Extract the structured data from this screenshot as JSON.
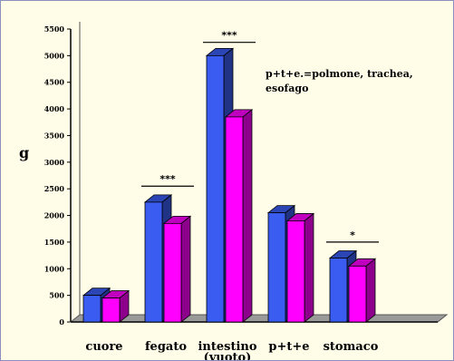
{
  "chart_data": {
    "type": "bar",
    "categories": [
      "cuore",
      "fegato",
      "intestino (vuoto)",
      "p+t+e",
      "stomaco"
    ],
    "category_lines": [
      [
        "cuore"
      ],
      [
        "fegato"
      ],
      [
        "intestino",
        "(vuoto)"
      ],
      [
        "p+t+e"
      ],
      [
        "stomaco"
      ]
    ],
    "series": [
      {
        "values": [
          500,
          2250,
          5000,
          2050,
          1200
        ],
        "color": "#3a5cf0"
      },
      {
        "values": [
          450,
          1850,
          3850,
          1900,
          1050
        ],
        "color": "#ff00ff"
      }
    ],
    "ylabel": "g",
    "xlabel": "",
    "ylim": [
      0,
      5500
    ],
    "yticks": [
      0,
      500,
      1000,
      1500,
      2000,
      2500,
      3000,
      3500,
      4000,
      4500,
      5000,
      5500
    ],
    "annotations": {
      "significance": [
        {
          "category": "fegato",
          "text": "***",
          "at_value": 2550
        },
        {
          "category": "intestino (vuoto)",
          "text": "***",
          "at_value": 5250
        },
        {
          "category": "stomaco",
          "text": "*",
          "at_value": 1500
        }
      ],
      "note_lines": [
        "p+t+e.=polmone, trachea,",
        "esofago"
      ]
    }
  }
}
